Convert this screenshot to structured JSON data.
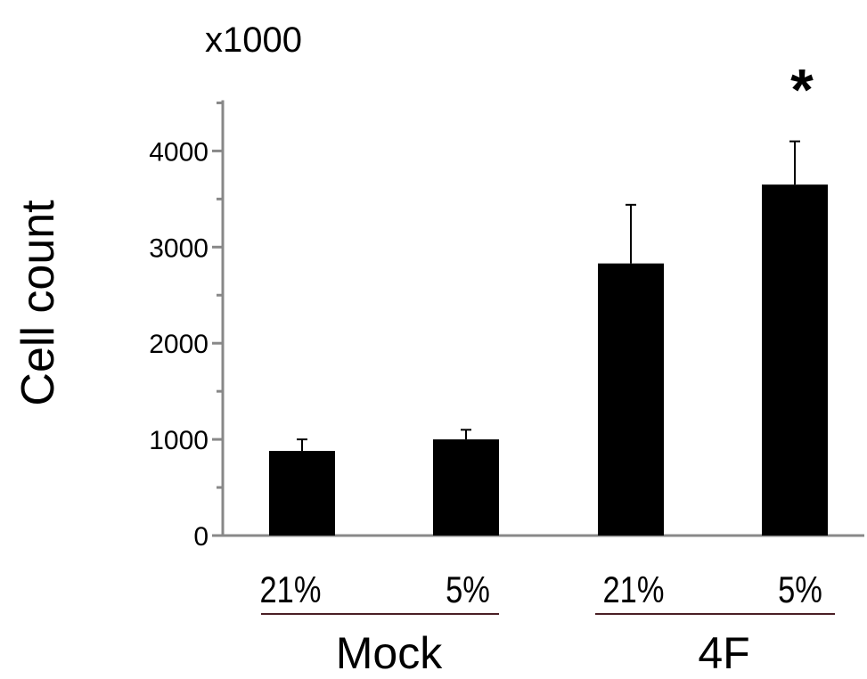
{
  "chart_data": {
    "type": "bar",
    "ylabel": "Cell count",
    "multiplier": "x1000",
    "ylim": [
      0,
      4500
    ],
    "yticks": [
      0,
      1000,
      2000,
      3000,
      4000
    ],
    "ytick_labels": [
      "0",
      "1000",
      "2000",
      "3000",
      "4000"
    ],
    "categories": [
      "21%",
      "5%",
      "21%",
      "5%"
    ],
    "groups": [
      {
        "name": "Mock",
        "categories": [
          0,
          1
        ]
      },
      {
        "name": "4F",
        "categories": [
          2,
          3
        ]
      }
    ],
    "values": [
      880,
      1000,
      2830,
      3650
    ],
    "errors": [
      120,
      100,
      610,
      450
    ],
    "significance": [
      "",
      "",
      "",
      "*"
    ],
    "colors": {
      "bar": "#000000",
      "axis": "#888888",
      "group_line": "#4a1f25"
    }
  }
}
